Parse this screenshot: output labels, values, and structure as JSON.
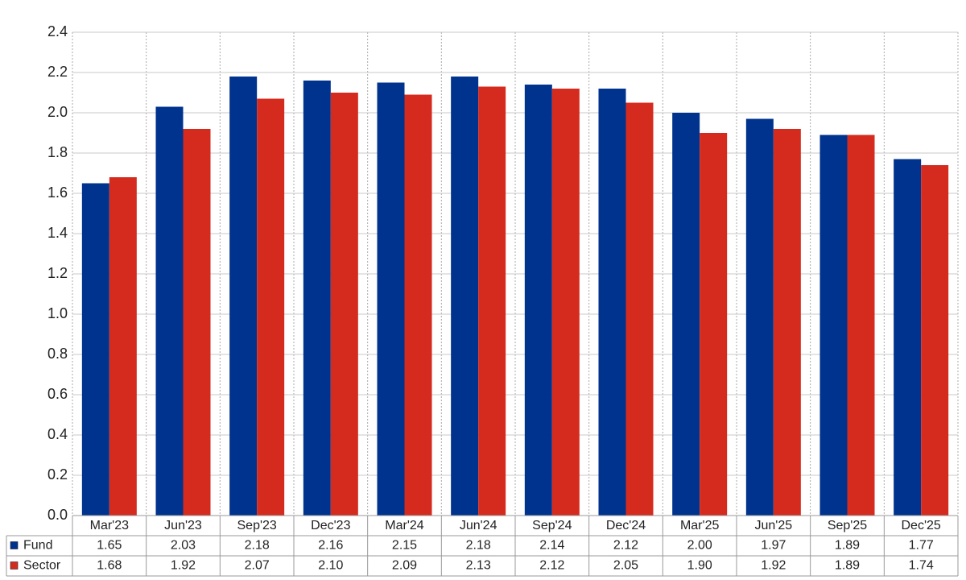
{
  "chart_data": {
    "type": "bar",
    "categories": [
      "Mar'23",
      "Jun'23",
      "Sep'23",
      "Dec'23",
      "Mar'24",
      "Jun'24",
      "Sep'24",
      "Dec'24",
      "Mar'25",
      "Jun'25",
      "Sep'25",
      "Dec'25"
    ],
    "series": [
      {
        "name": "Fund",
        "color": "#00338d",
        "values": [
          1.65,
          2.03,
          2.18,
          2.16,
          2.15,
          2.18,
          2.14,
          2.12,
          2.0,
          1.97,
          1.89,
          1.77
        ],
        "value_labels": [
          "1.65",
          "2.03",
          "2.18",
          "2.16",
          "2.15",
          "2.18",
          "2.14",
          "2.12",
          "2.00",
          "1.97",
          "1.89",
          "1.77"
        ]
      },
      {
        "name": "Sector",
        "color": "#d52b1e",
        "values": [
          1.68,
          1.92,
          2.07,
          2.1,
          2.09,
          2.13,
          2.12,
          2.05,
          1.9,
          1.92,
          1.89,
          1.74
        ],
        "value_labels": [
          "1.68",
          "1.92",
          "2.07",
          "2.10",
          "2.09",
          "2.13",
          "2.12",
          "2.05",
          "1.90",
          "1.92",
          "1.89",
          "1.74"
        ]
      }
    ],
    "ylim": [
      0,
      2.4
    ],
    "yticks": [
      {
        "value": 0,
        "label": "0.0"
      },
      0.2,
      0.4,
      0.6,
      0.8,
      {
        "value": 1,
        "label": "1.0"
      },
      1.2,
      1.4,
      1.6,
      1.8,
      {
        "value": 2,
        "label": "2.0"
      },
      2.2,
      2.4
    ],
    "grid": true
  }
}
